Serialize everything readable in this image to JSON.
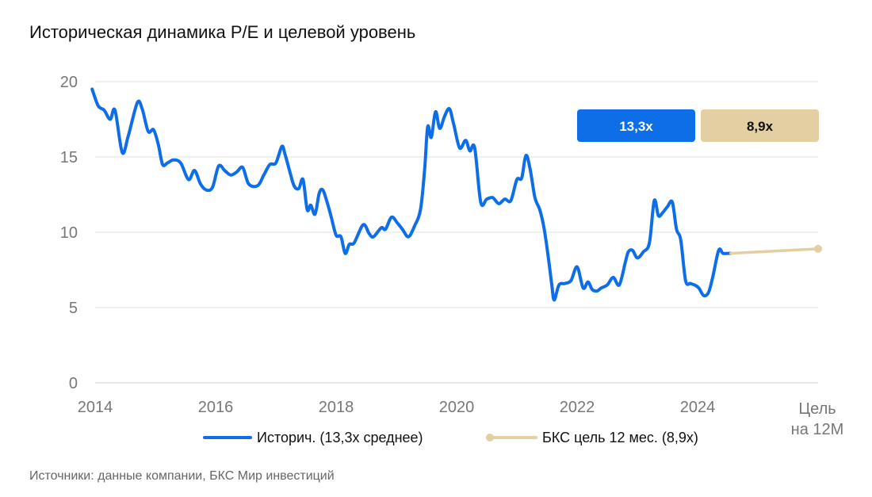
{
  "title": "Историческая динамика P/E и целевой уровень",
  "source": "Источники: данные компании, БКС Мир инвестиций",
  "chart_data": {
    "type": "line",
    "title": "Историческая динамика P/E и целевой уровень",
    "ylim": [
      0,
      20
    ],
    "yticks": [
      "0",
      "5",
      "10",
      "15",
      "20"
    ],
    "xlim": [
      2014,
      2026
    ],
    "xticks": [
      {
        "x": 2014,
        "label": "2014"
      },
      {
        "x": 2016,
        "label": "2016"
      },
      {
        "x": 2018,
        "label": "2018"
      },
      {
        "x": 2020,
        "label": "2020"
      },
      {
        "x": 2022,
        "label": "2022"
      },
      {
        "x": 2024,
        "label": "2024"
      }
    ],
    "target_tick": {
      "x": 2026,
      "line1": "Цель",
      "line2": "на 12М"
    },
    "grid": true,
    "legend_position": "bottom",
    "badges": [
      {
        "label": "13,3x",
        "color": "#0d6ee8",
        "text_color": "#ffffff"
      },
      {
        "label": "8,9x",
        "color": "#e3cfa2",
        "text_color": "#111111"
      }
    ],
    "series": [
      {
        "name": "Историч. (13,3x среднее)",
        "color": "#0d6ee8",
        "x": [
          2013.95,
          2014.05,
          2014.15,
          2014.25,
          2014.33,
          2014.45,
          2014.55,
          2014.7,
          2014.78,
          2014.88,
          2014.97,
          2015.05,
          2015.12,
          2015.2,
          2015.3,
          2015.42,
          2015.55,
          2015.65,
          2015.75,
          2015.85,
          2015.95,
          2016.05,
          2016.15,
          2016.25,
          2016.35,
          2016.45,
          2016.55,
          2016.7,
          2016.8,
          2016.9,
          2017.0,
          2017.1,
          2017.15,
          2017.22,
          2017.3,
          2017.38,
          2017.45,
          2017.52,
          2017.58,
          2017.65,
          2017.72,
          2017.78,
          2017.85,
          2017.92,
          2018.0,
          2018.08,
          2018.15,
          2018.22,
          2018.3,
          2018.45,
          2018.55,
          2018.62,
          2018.75,
          2018.82,
          2018.92,
          2019.02,
          2019.1,
          2019.2,
          2019.3,
          2019.4,
          2019.47,
          2019.52,
          2019.58,
          2019.65,
          2019.72,
          2019.8,
          2019.88,
          2019.95,
          2020.05,
          2020.15,
          2020.22,
          2020.3,
          2020.4,
          2020.5,
          2020.6,
          2020.7,
          2020.8,
          2020.9,
          2021.0,
          2021.08,
          2021.15,
          2021.22,
          2021.3,
          2021.38,
          2021.45,
          2021.52,
          2021.58,
          2021.62,
          2021.7,
          2021.8,
          2021.9,
          2022.0,
          2022.1,
          2022.18,
          2022.25,
          2022.33,
          2022.4,
          2022.5,
          2022.6,
          2022.7,
          2022.8,
          2022.85,
          2022.92,
          2023.0,
          2023.1,
          2023.2,
          2023.28,
          2023.35,
          2023.42,
          2023.5,
          2023.58,
          2023.65,
          2023.72,
          2023.8,
          2023.88,
          2023.95,
          2024.02,
          2024.1,
          2024.18,
          2024.25,
          2024.35,
          2024.42,
          2024.5,
          2024.55
        ],
        "values": [
          19.5,
          18.4,
          18.1,
          17.5,
          18.1,
          15.3,
          16.4,
          18.6,
          18.2,
          16.7,
          16.8,
          15.8,
          14.5,
          14.6,
          14.8,
          14.6,
          13.5,
          14.1,
          13.2,
          12.8,
          13.0,
          14.4,
          14.1,
          13.8,
          14.0,
          14.3,
          13.2,
          13.1,
          13.8,
          14.5,
          14.6,
          15.7,
          15.2,
          14.2,
          13.1,
          12.9,
          13.5,
          11.5,
          11.8,
          11.2,
          12.6,
          12.8,
          12.0,
          11.0,
          9.8,
          9.7,
          8.6,
          9.2,
          9.3,
          10.5,
          9.9,
          9.7,
          10.3,
          10.2,
          11.0,
          10.6,
          10.2,
          9.7,
          10.4,
          11.5,
          14.2,
          17.0,
          16.3,
          18.0,
          16.9,
          17.7,
          18.2,
          17.2,
          15.6,
          16.1,
          15.4,
          15.6,
          12.0,
          12.2,
          12.3,
          11.9,
          12.2,
          12.1,
          13.5,
          13.6,
          15.1,
          14.2,
          12.3,
          11.5,
          10.3,
          8.4,
          6.5,
          5.5,
          6.5,
          6.6,
          6.8,
          7.7,
          6.3,
          6.7,
          6.2,
          6.1,
          6.3,
          6.5,
          7.0,
          6.5,
          8.0,
          8.7,
          8.8,
          8.3,
          8.7,
          9.3,
          12.1,
          11.1,
          11.3,
          11.7,
          12.0,
          10.2,
          9.5,
          6.8,
          6.6,
          6.5,
          6.3,
          5.8,
          6.0,
          7.0,
          8.8,
          8.6,
          8.6,
          8.6
        ]
      },
      {
        "name": "БКС цель 12 мес. (8,9x)",
        "color": "#e3cfa2",
        "x": [
          2024.55,
          2026.0
        ],
        "values": [
          8.6,
          8.9
        ]
      }
    ]
  }
}
